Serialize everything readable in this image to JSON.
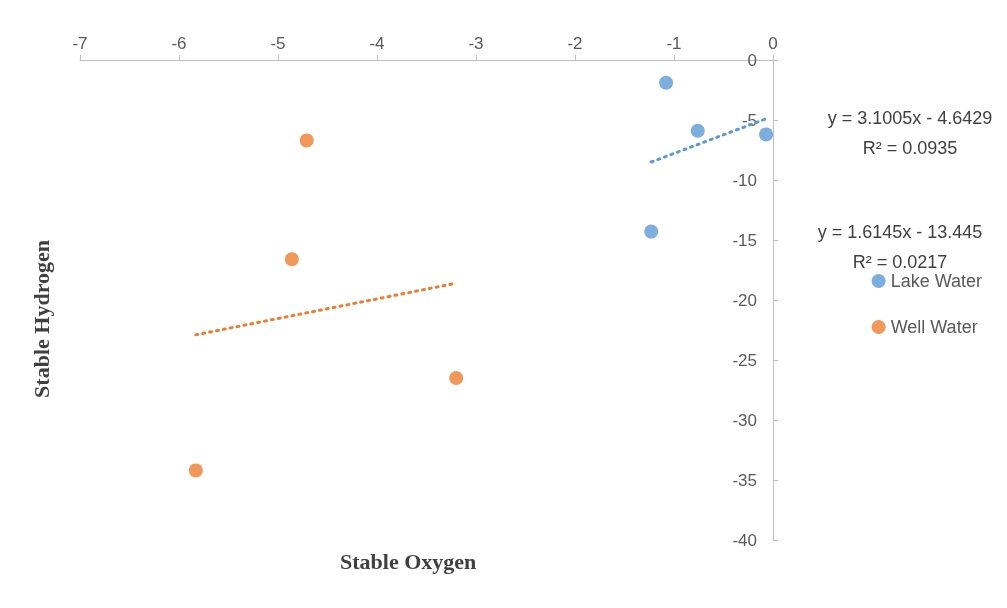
{
  "chart_data": {
    "type": "scatter",
    "xlabel": "Stable Oxygen",
    "ylabel": "Stable Hydrogen",
    "xlim": [
      -7,
      0
    ],
    "xticks": [
      -7,
      -6,
      -5,
      -4,
      -3,
      -2,
      -1,
      0
    ],
    "ylim": [
      -40,
      0
    ],
    "yticks": [
      -40,
      -35,
      -30,
      -25,
      -20,
      -15,
      -10,
      -5,
      0
    ],
    "grid": false,
    "legend": "right",
    "marker": "circle",
    "annotations": [
      "y = 3.1005x - 4.6429",
      "R² = 0.0935",
      "y = 1.6145x - 13.445",
      "R² = 0.0217"
    ],
    "series": [
      {
        "name": "Lake Water",
        "color": "#5b9bd5",
        "x": [
          -1.08,
          -0.76,
          -0.07,
          -1.23
        ],
        "values": [
          -1.9,
          -5.9,
          -6.2,
          -14.3
        ]
      },
      {
        "name": "Well Water",
        "color": "#ed7d31",
        "x": [
          -4.71,
          -4.86,
          -3.2,
          -5.83
        ],
        "values": [
          -6.7,
          -16.6,
          -26.5,
          -34.2
        ]
      },
      {
        "type": "line",
        "color": "#5b9bd5",
        "marker": "none",
        "line_style": "dotted",
        "x": [
          -1.23,
          -0.07
        ],
        "values": [
          -8.5,
          -4.9
        ]
      },
      {
        "type": "line",
        "color": "#ed7d31",
        "marker": "none",
        "line_style": "dotted",
        "x": [
          -5.83,
          -3.2
        ],
        "values": [
          -22.9,
          -18.6
        ]
      }
    ]
  }
}
